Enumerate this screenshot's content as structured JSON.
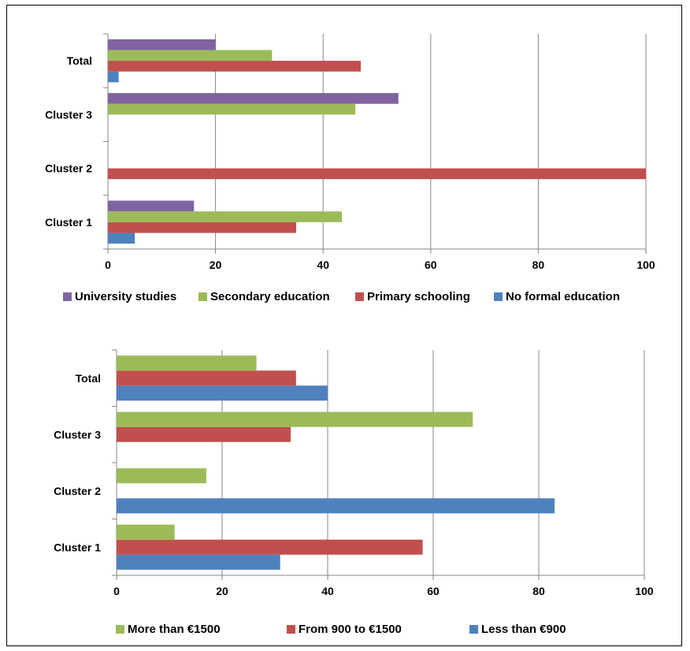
{
  "chart_data": [
    {
      "type": "bar",
      "orientation": "horizontal",
      "categories": [
        "Cluster 1",
        "Cluster 2",
        "Cluster 3",
        "Total"
      ],
      "series": [
        {
          "name": "No formal education",
          "color": "#4F81BD",
          "values": [
            5,
            0,
            0,
            2
          ]
        },
        {
          "name": "Primary schooling",
          "color": "#C0504D",
          "values": [
            35,
            100,
            0,
            47
          ]
        },
        {
          "name": "Secondary education",
          "color": "#9BBB59",
          "values": [
            43.5,
            0,
            46,
            30.5
          ]
        },
        {
          "name": "University studies",
          "color": "#8064A2",
          "values": [
            16,
            0,
            54,
            20
          ]
        }
      ],
      "legend_order": [
        "University studies",
        "Secondary education",
        "Primary schooling",
        "No formal education"
      ],
      "xlim": [
        0,
        100
      ],
      "xticks": [
        "0",
        "20",
        "40",
        "60",
        "80",
        "100"
      ],
      "grid": "vertical",
      "legend": "bottom"
    },
    {
      "type": "bar",
      "orientation": "horizontal",
      "categories": [
        "Cluster 1",
        "Cluster 2",
        "Cluster 3",
        "Total"
      ],
      "series": [
        {
          "name": "Less than €900",
          "color": "#4F81BD",
          "values": [
            31,
            83,
            0,
            40
          ]
        },
        {
          "name": "From 900 to €1500",
          "color": "#C0504D",
          "values": [
            58,
            0,
            33,
            34
          ]
        },
        {
          "name": "More than €1500",
          "color": "#9BBB59",
          "values": [
            11,
            17,
            67.5,
            26.5
          ]
        }
      ],
      "legend_order": [
        "More than €1500",
        "From 900 to €1500",
        "Less than €900"
      ],
      "xlim": [
        0,
        100
      ],
      "xticks": [
        "0",
        "20",
        "40",
        "60",
        "80",
        "100"
      ],
      "grid": "vertical",
      "legend": "bottom"
    }
  ]
}
